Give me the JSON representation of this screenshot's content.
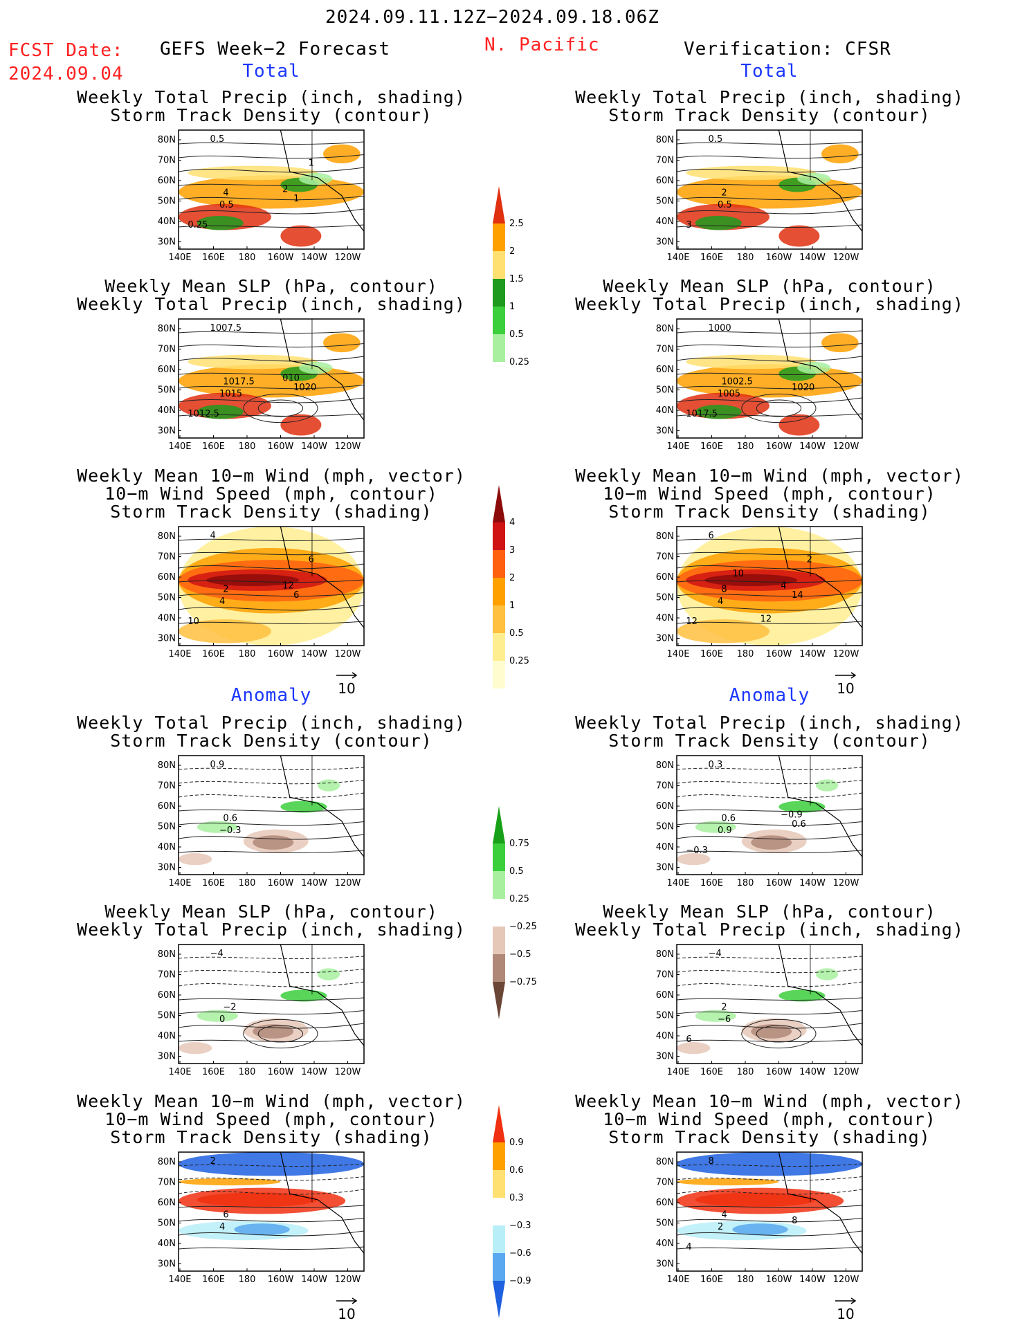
{
  "header": {
    "date_range": "2024.09.11.12Z−2024.09.18.06Z",
    "fcst_label": "FCST Date:",
    "fcst_date": "2024.09.04",
    "forecast_title": "GEFS Week−2 Forecast",
    "region": "N. Pacific",
    "verification": "Verification: CFSR"
  },
  "sections": {
    "total": "Total",
    "anomaly": "Anomaly"
  },
  "titles": {
    "precip_track": [
      "Weekly Total Precip (inch, shading)",
      "Storm Track Density (contour)"
    ],
    "slp_precip": [
      "Weekly Mean SLP (hPa, contour)",
      "Weekly Total Precip (inch, shading)"
    ],
    "wind_track": [
      "Weekly Mean 10−m Wind (mph, vector)",
      "10−m Wind Speed (mph, contour)",
      "Storm Track Density (shading)"
    ]
  },
  "axes": {
    "lat_ticks": [
      "80N",
      "70N",
      "60N",
      "50N",
      "40N",
      "30N"
    ],
    "lon_ticks": [
      "140E",
      "160E",
      "180",
      "160W",
      "140W",
      "120W"
    ]
  },
  "vector_ref": "10",
  "colorbars": {
    "precip_total": {
      "labels": [
        "2.5",
        "2",
        "1.5",
        "1",
        "0.5",
        "0.25"
      ],
      "colors": [
        "#e03010",
        "#ffa000",
        "#ffe070",
        "#1e9a1e",
        "#3ccf3c",
        "#a8f0a0"
      ]
    },
    "track_total": {
      "labels": [
        "4",
        "3",
        "2",
        "1",
        "0.5",
        "0.25"
      ],
      "colors": [
        "#8c0a0a",
        "#d01414",
        "#ff6010",
        "#ffa000",
        "#ffc040",
        "#ffee90",
        "#fffdd0"
      ]
    },
    "precip_anom": {
      "labels": [
        "0.75",
        "0.5",
        "0.25",
        "−0.25",
        "−0.5",
        "−0.75"
      ],
      "colors": [
        "#18a018",
        "#3ccf3c",
        "#a8f0a0",
        "#ffffff",
        "#e6c8b8",
        "#b08878",
        "#6a4636"
      ]
    },
    "track_anom": {
      "labels": [
        "0.9",
        "0.6",
        "0.3",
        "−0.3",
        "−0.6",
        "−0.9"
      ],
      "colors": [
        "#f03010",
        "#ffa000",
        "#ffe070",
        "#ffffff",
        "#b8eef8",
        "#5aa8f0",
        "#1e60e0"
      ]
    }
  },
  "panels": {
    "f1": {
      "labels": [
        "0.5",
        "4",
        "0.5",
        "0.25",
        "1",
        "2",
        "1"
      ]
    },
    "f2": {
      "labels": [
        "1007.5",
        "1017.5",
        "1015",
        "1012.5",
        "1020",
        "010"
      ]
    },
    "f3": {
      "labels": [
        "4",
        "2",
        "4",
        "10",
        "6",
        "12",
        "6"
      ]
    },
    "v1": {
      "labels": [
        "0.5",
        "2",
        "0.5",
        "3"
      ]
    },
    "v2": {
      "labels": [
        "1000",
        "1002.5",
        "1005",
        "1017.5",
        "1020"
      ]
    },
    "v3": {
      "labels": [
        "6",
        "8",
        "4",
        "12",
        "14",
        "4",
        "2",
        "12",
        "10"
      ]
    },
    "f4": {
      "labels": [
        "0.9",
        "0.6",
        "−0.3"
      ]
    },
    "f5": {
      "labels": [
        "−4",
        "−2",
        "0"
      ]
    },
    "f6": {
      "labels": [
        "2",
        "6",
        "4"
      ]
    },
    "v4": {
      "labels": [
        "0.3",
        "0.6",
        "0.9",
        "−0.3",
        "0.6",
        "−0.9"
      ]
    },
    "v5": {
      "labels": [
        "−4",
        "2",
        "−6",
        "6"
      ]
    },
    "v6": {
      "labels": [
        "8",
        "4",
        "2",
        "4",
        "8"
      ]
    }
  }
}
